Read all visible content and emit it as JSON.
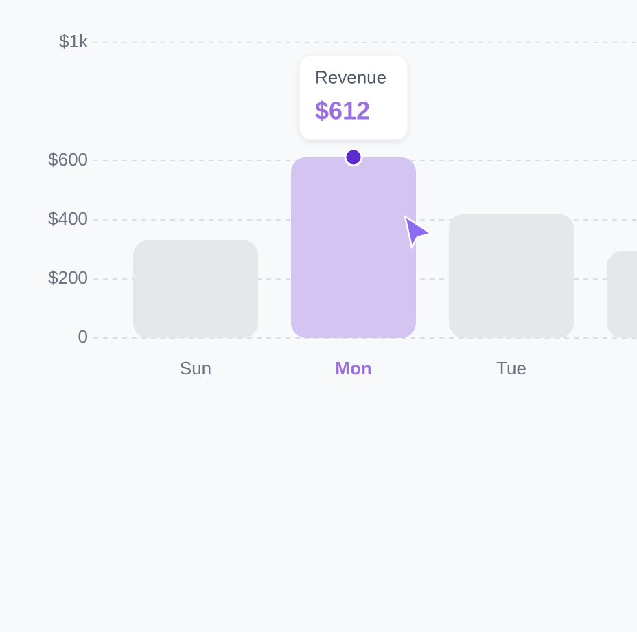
{
  "chart_data": {
    "type": "bar",
    "categories": [
      "Sun",
      "Mon",
      "Tue",
      null
    ],
    "series": [
      {
        "name": "Revenue",
        "color": "#e5e7eb",
        "highlight_color": "#d4c4f2",
        "values": [
          331,
          612,
          420,
          294
        ],
        "value_labels": [
          null,
          "$612",
          null,
          null
        ]
      }
    ],
    "active_index": 1,
    "ylim": [
      0,
      1000
    ],
    "yticks": [
      0,
      {
        "value": 200,
        "label": "$200"
      },
      {
        "value": 400,
        "label": "$400"
      },
      {
        "value": 600,
        "label": "$600"
      },
      {
        "value": 1000,
        "label": "$1k"
      }
    ],
    "grid": true
  }
}
